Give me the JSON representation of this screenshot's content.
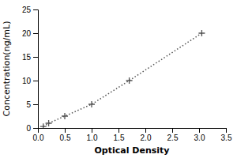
{
  "chart_data": {
    "type": "line",
    "x": [
      0.1,
      0.2,
      0.5,
      1.0,
      1.7,
      3.05
    ],
    "values": [
      0.3,
      1.0,
      2.5,
      5.0,
      10.0,
      20.0
    ],
    "xlabel": "Optical Density",
    "ylabel": "Concentration(ng/mL)",
    "xlim": [
      0,
      3.5
    ],
    "ylim": [
      0,
      25
    ],
    "xticks": [
      {
        "value": 0,
        "label": "0.0"
      },
      {
        "value": 0.5,
        "label": "0.5"
      },
      {
        "value": 1.0,
        "label": "1.0"
      },
      {
        "value": 1.5,
        "label": "1.5"
      },
      {
        "value": 2.0,
        "label": "2.0"
      },
      {
        "value": 2.5,
        "label": "2.5"
      },
      {
        "value": 3.0,
        "label": "3.0"
      },
      {
        "value": 3.5,
        "label": "3.5"
      }
    ],
    "yticks": [
      0,
      5,
      10,
      15,
      20,
      25
    ],
    "color": "#555555",
    "marker": "plus",
    "line_style": "dotted",
    "grid": false
  }
}
